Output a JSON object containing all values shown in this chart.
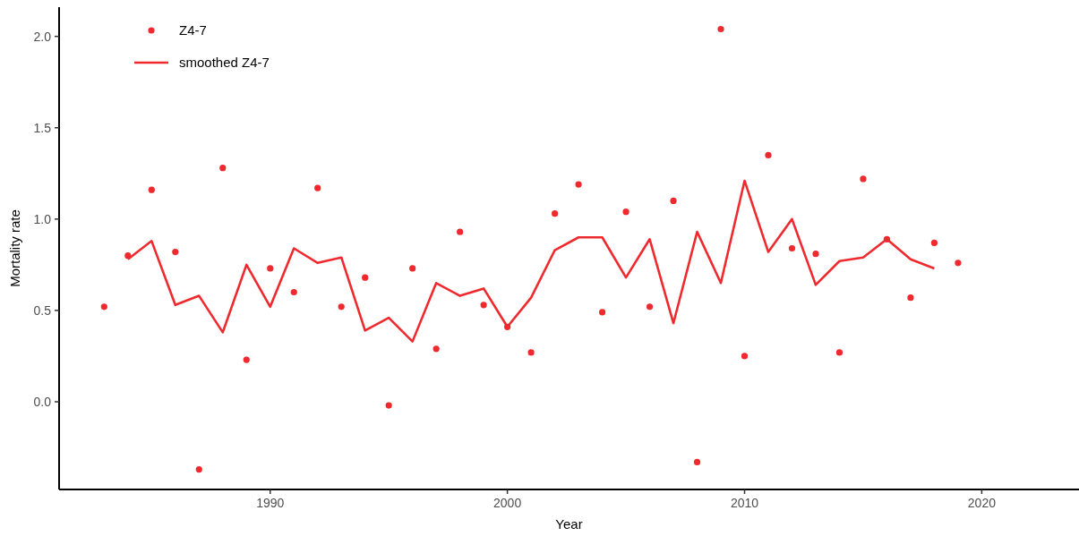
{
  "chart_data": {
    "type": "scatter",
    "xlabel": "Year",
    "ylabel": "Mortality rate",
    "xlim": [
      1981.1,
      2024.1
    ],
    "ylim": [
      -0.48,
      2.16
    ],
    "xticks": [
      1990,
      2000,
      2010,
      2020
    ],
    "yticks": [
      {
        "value": 0,
        "label": "0.0"
      },
      {
        "value": 0.5,
        "label": "0.5"
      },
      {
        "value": 1,
        "label": "1.0"
      },
      {
        "value": 1.5,
        "label": "1.5"
      },
      {
        "value": 2,
        "label": "2.0"
      }
    ],
    "legend": "top left",
    "grid": false,
    "series": [
      {
        "name": "Z4-7",
        "marker": "circle",
        "color": "#ee2a2e",
        "x": [
          1983,
          1984,
          1985,
          1986,
          1987,
          1988,
          1989,
          1990,
          1991,
          1992,
          1993,
          1994,
          1995,
          1996,
          1997,
          1998,
          1999,
          2000,
          2001,
          2002,
          2003,
          2004,
          2005,
          2006,
          2007,
          2008,
          2009,
          2010,
          2011,
          2012,
          2013,
          2014,
          2015,
          2016,
          2017,
          2018,
          2019
        ],
        "values": [
          0.52,
          0.8,
          1.16,
          0.82,
          -0.37,
          1.28,
          0.23,
          0.73,
          0.6,
          1.17,
          0.52,
          0.68,
          -0.02,
          0.73,
          0.29,
          0.93,
          0.53,
          0.41,
          0.27,
          1.03,
          1.19,
          0.49,
          1.04,
          0.52,
          1.1,
          -0.33,
          2.04,
          0.25,
          1.35,
          0.84,
          0.81,
          0.27,
          1.22,
          0.89,
          0.57,
          0.87,
          0.76
        ]
      },
      {
        "name": "smoothed Z4-7",
        "type": "line",
        "marker": "none",
        "line_style": "solid",
        "color": "#ee2a2e",
        "x": [
          1984,
          1985,
          1986,
          1987,
          1988,
          1989,
          1990,
          1991,
          1992,
          1993,
          1994,
          1995,
          1996,
          1997,
          1998,
          1999,
          2000,
          2001,
          2002,
          2003,
          2004,
          2005,
          2006,
          2007,
          2008,
          2009,
          2010,
          2011,
          2012,
          2013,
          2014,
          2015,
          2016,
          2017,
          2018
        ],
        "values": [
          0.78,
          0.88,
          0.53,
          0.58,
          0.38,
          0.75,
          0.52,
          0.84,
          0.76,
          0.79,
          0.39,
          0.46,
          0.33,
          0.65,
          0.58,
          0.62,
          0.41,
          0.57,
          0.83,
          0.9,
          0.9,
          0.68,
          0.89,
          0.43,
          0.93,
          0.65,
          1.21,
          0.82,
          1,
          0.64,
          0.77,
          0.79,
          0.89,
          0.78,
          0.73
        ]
      }
    ]
  }
}
